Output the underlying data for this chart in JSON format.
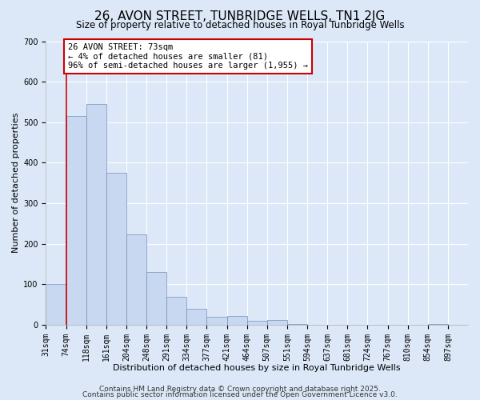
{
  "title": "26, AVON STREET, TUNBRIDGE WELLS, TN1 2JG",
  "subtitle": "Size of property relative to detached houses in Royal Tunbridge Wells",
  "xlabel": "Distribution of detached houses by size in Royal Tunbridge Wells",
  "ylabel": "Number of detached properties",
  "bin_labels": [
    "31sqm",
    "74sqm",
    "118sqm",
    "161sqm",
    "204sqm",
    "248sqm",
    "291sqm",
    "334sqm",
    "377sqm",
    "421sqm",
    "464sqm",
    "507sqm",
    "551sqm",
    "594sqm",
    "637sqm",
    "681sqm",
    "724sqm",
    "767sqm",
    "810sqm",
    "854sqm",
    "897sqm"
  ],
  "bar_values": [
    100,
    515,
    545,
    375,
    222,
    130,
    68,
    40,
    20,
    22,
    10,
    11,
    2,
    0,
    0,
    0,
    0,
    0,
    0,
    2,
    0
  ],
  "bar_color": "#c8d8f0",
  "bar_edge_color": "#7090b8",
  "vline_x_index": 1,
  "vline_color": "#cc0000",
  "annotation_line1": "26 AVON STREET: 73sqm",
  "annotation_line2": "← 4% of detached houses are smaller (81)",
  "annotation_line3": "96% of semi-detached houses are larger (1,955) →",
  "annotation_box_color": "#ffffff",
  "annotation_box_edge": "#cc0000",
  "ylim": [
    0,
    700
  ],
  "yticks": [
    0,
    100,
    200,
    300,
    400,
    500,
    600,
    700
  ],
  "footer_line1": "Contains HM Land Registry data © Crown copyright and database right 2025.",
  "footer_line2": "Contains public sector information licensed under the Open Government Licence v3.0.",
  "background_color": "#dce8f8",
  "grid_color": "#ffffff",
  "title_fontsize": 11,
  "subtitle_fontsize": 8.5,
  "axis_label_fontsize": 8,
  "tick_fontsize": 7,
  "annotation_fontsize": 7.5,
  "footer_fontsize": 6.5
}
